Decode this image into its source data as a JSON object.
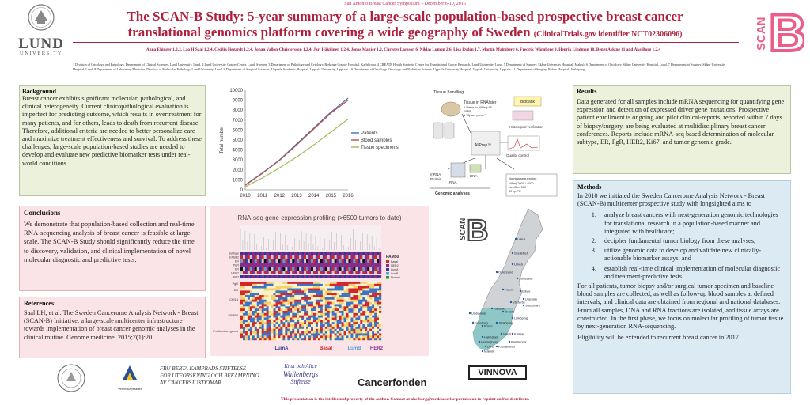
{
  "header": {
    "symposium": "San Antonio Breast Cancer Symposium – December 6-10, 2016",
    "title_line1": "The SCAN-B Study: 5-year summary of a large-scale population-based prospective breast cancer",
    "title_line2": "translational genomics platform covering a wide geography of Sweden",
    "title_sub": "(ClinicalTrials.gov identifier NCT02306096)",
    "authors": "Anna Ehinger 1,2,3, Lao H Saal 1,2,4, Cecilia Hegardt 1,2,4, Johan Vallon-Christersson 1,2,4, Jari Häkkinen 1,2,4, Jonas Manjer 1,2, Christer Larsson 6, Niklas Loman 2,6, Lisa Rydén 1,7, Martin Malmberg 6, Fredrik Wärnberg 9, Henrik Lindman 10, Bengt Asking 11 and Åke Borg 1,2,4",
    "affiliations": "1 Division of Oncology and Pathology, Department of Clinical Sciences, Lund University, Lund. 2 Lund University Cancer Center, Lund, Sweden. 3 Department of Pathology and Cytology, Blekinge County Hospital, Karlskrona. 4 CREATE Health Strategic Center for Translational Cancer Research, Lund University, Lund. 5 Department of Surgery, Skåne University Hospital, Malmö. 6 Department of Oncology, Skåne University Hospital, Lund. 7 Department of Surgery, Skåne University Hospital, Lund. 8 Department of Laboratory Medicine, Division of Molecular Pathology, Lund University, Lund. 9 Department of Surgical Sciences, Uppsala Academic Hospital, Uppsala University, Uppsala. 10 Department of Oncology, Oncology and Radiation Science, Uppsala University Hospital, Uppsala University, Uppsala. 11 Department of Surgery, Ryhov Hospital, Jönköping."
  },
  "logos": {
    "lund": "LUND",
    "university": "UNIVERSITY",
    "scan": "SCAN",
    "b": "B"
  },
  "background": {
    "heading": "Background",
    "text": "Breast cancer exhibits significant molecular, pathological, and clinical heterogeneity. Current clinicopathological evaluation is imperfect for predicting outcome, which results in overtreatment for many patients, and for others, leads to death from recurrent disease. Therefore, additional criteria are needed to better personalize care and maximize treatment effectiveness and survival. To address these challenges, large-scale population-based studies are needed to develop and evaluate new predictive biomarker tests under real-world conditions."
  },
  "conclusions": {
    "heading": "Conclusions",
    "text": "We demonstrate that population-based collection and real-time RNA-sequencing analysis of breast cancer is feasible at large-scale. The SCAN-B Study should significantly reduce the time to discovery, validation, and clinical implementation of novel molecular diagnostic and predictive tests."
  },
  "references": {
    "heading": "References:",
    "text": "Saal LH, et al. The Sweden Cancerome Analysis Network - Breast (SCAN-B) Initiative: a large-scale multicenter infrastructure towards implementation of breast cancer genomic analyses in the clinical routine. Genome medicine. 2015;7(1):20."
  },
  "results": {
    "heading": "Results",
    "text": "Data generated for all samples include mRNA sequencing for quantifying gene expression and detection of expressed driver gene mutations. Prospective patient enrollment is ongoing and pilot clinical-reports, reported within 7 days of biopsy/surgery, are being evaluated at multidisciplinary breast cancer conferences. Reports include mRNA-seq based determination of molecular subtype, ER, PgR, HER2, Ki67, and tumor genomic grade."
  },
  "methods": {
    "heading": "Methods",
    "intro": "In 2010 we initiated the Sweden Cancerome Analysis Network - Breast (SCAN-B) multicenter prospective study with longsighted aims to",
    "aims": [
      "analyze breast cancers with next-generation genomic technologies for translational research in a population-based manner and integrated with healthcare;",
      "decipher fundamental tumor biology from these analyses;",
      "utilize genomic data to develop and validate new clinically-actionable biomarker assays; and",
      "establish real-time clinical implementation of molecular diagnostic and treatment-predictive tests.."
    ],
    "body": "For all patients, tumor biopsy and/or surgical tumor specimen and baseline blood samples are collected, as well as follow-up blood samples at defined intervals, and clinical data are obtained from regional and national databases. From all samples, DNA and RNA fractions are isolated, and tissue arrays are constructed. In the first phase, we focus on molecular profiling of tumor tissue by next-generation RNA-sequencing.",
    "eligibility": "Eligibility will be extended to recurrent breast cancer in 2017."
  },
  "chart_data": {
    "type": "line",
    "x": [
      2010,
      2011,
      2012,
      2013,
      2014,
      2015,
      2016
    ],
    "ylabel": "Total number",
    "ylim": [
      0,
      10000
    ],
    "yticks": [
      0,
      1000,
      2000,
      3000,
      4000,
      5000,
      6000,
      7000,
      8000,
      9000,
      10000
    ],
    "legend": "right",
    "series": [
      {
        "name": "Patients",
        "color": "#4a6fb5",
        "values": [
          500,
          1700,
          3000,
          4600,
          6200,
          7800,
          9200
        ]
      },
      {
        "name": "Blood samples",
        "color": "#c0504d",
        "values": [
          450,
          1650,
          2950,
          4500,
          6100,
          7700,
          9000
        ]
      },
      {
        "name": "Tissue specimens",
        "color": "#9bbb59",
        "values": [
          300,
          1200,
          2200,
          3300,
          4500,
          5800,
          7100
        ]
      }
    ]
  },
  "heatmap": {
    "title": "RNA-seq gene expression profiling (>6500 tumors to date)",
    "row_labels": [
      "Subtype",
      "ERBB2",
      "ER",
      "PgR",
      "ER",
      "HER2",
      "Ki67"
    ],
    "side_labels": [
      "PgR",
      "ER",
      "CR/14",
      "ERBB2",
      "Proliferation genes"
    ],
    "pam50_title": "PAM50",
    "pam50_items": [
      "Basal",
      "HER2",
      "LumA",
      "LumB",
      "Normal"
    ],
    "subtypes": [
      {
        "label": "LumA",
        "color": "#2b3a9c"
      },
      {
        "label": "Basal",
        "color": "#d2262c"
      },
      {
        "label": "LumB",
        "color": "#5aa0d8"
      },
      {
        "label": "HER2",
        "color": "#8a2b8a"
      }
    ]
  },
  "workflow": {
    "tissue_handling": "Tissue handling",
    "tissue_in": "Tissue in RNAlater",
    "piece_allprep": "1 Piece to AllPrep™",
    "ffpe": "FFPE",
    "spare_piece": "1 \"Spare piece\"",
    "biobank": "Biobank",
    "histology": "Histological verification",
    "allprep": "AllPrep™",
    "quality_control": "Quality control",
    "mrna": "mRNA",
    "protein": "Protein",
    "rna": "RNA",
    "dna": "DNA",
    "genomic_analyses": "Genomic analyses",
    "seq_note": "Illumina sequencing",
    "seq_lines": [
      "HiSeq 2000 / 4000",
      "NextSeq 500",
      "50 bp PE"
    ]
  },
  "map": {
    "cities": [
      "Luleå",
      "Skellefteå",
      "Umeå",
      "Östersund",
      "Sundsvall",
      "Falun",
      "Gävle",
      "Uppsala",
      "Västerås",
      "Stockholm",
      "Karlstad",
      "Örebro",
      "Linköping",
      "Jönköping",
      "Växjö",
      "Kalmar",
      "Karlskrona",
      "Halmstad",
      "Helsingborg",
      "Lund",
      "Malmö",
      "Kristianstad",
      "Göteborg",
      "Borås",
      "Uddevalla"
    ],
    "scan": "SCAN",
    "b": "B"
  },
  "sponsors": {
    "fbk_line1": "FRU BERTA KAMPRADS STIFTELSE",
    "fbk_line2": "FÖR UTFORSKNING OCH BEKÄMPNING",
    "fbk_line3": "AV CANCERSJUKDOMAR",
    "vetenskapsradet": "Vetenskapsrådet",
    "kaw_line1": "Knut och Alice",
    "kaw_line2": "Wallenbergs",
    "kaw_line3": "Stiftelse",
    "cancerfonden": "Cancerfonden",
    "vinnova": "VINNOVA"
  },
  "footer": "This presentation is the intellectual property of the author. Contact at ake.borg@med.lu.se for permission to reprint and/or distribute.",
  "colors": {
    "title_red": "#b0203e",
    "green_panel": "#ecf1dc",
    "pink_panel": "#fbe4e7",
    "blue_panel": "#dceaf3",
    "scan_pink": "#e8608a"
  }
}
